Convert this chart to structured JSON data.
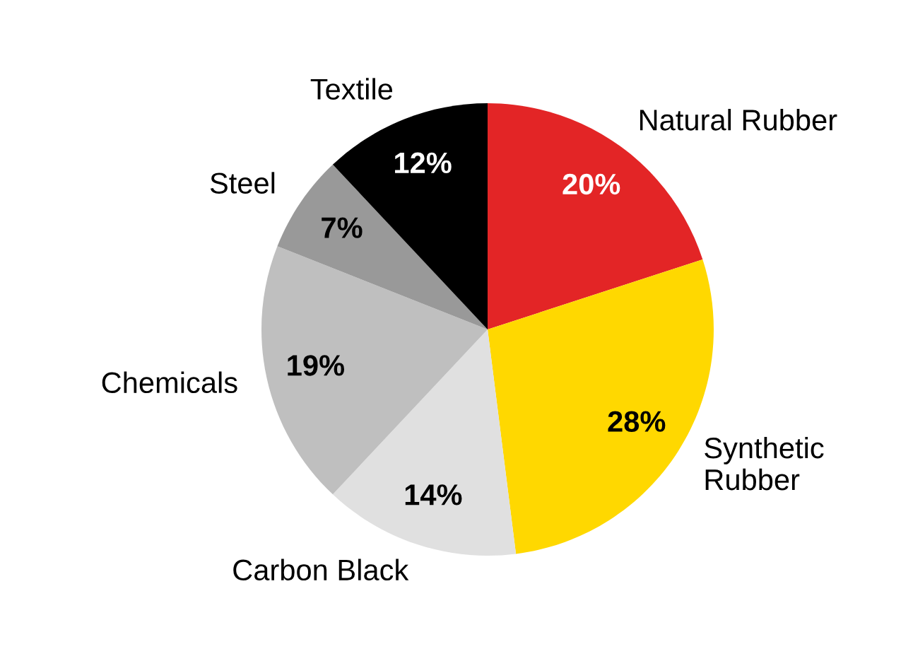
{
  "chart_data": {
    "type": "pie",
    "categories": [
      "Natural Rubber",
      "Synthetic\nRubber",
      "Carbon Black",
      "Chemicals",
      "Steel",
      "Textile"
    ],
    "values": [
      20,
      28,
      14,
      19,
      7,
      12
    ],
    "colors": [
      "#e32526",
      "#ffd800",
      "#e0e0e0",
      "#bfbfbf",
      "#999999",
      "#000000"
    ],
    "value_labels": [
      "20%",
      "28%",
      "14%",
      "19%",
      "7%",
      "12%"
    ]
  }
}
